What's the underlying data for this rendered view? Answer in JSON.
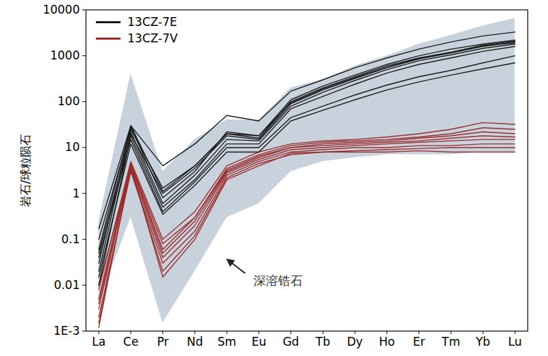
{
  "chart_data": {
    "type": "line",
    "categories": [
      "La",
      "Ce",
      "Pr",
      "Nd",
      "Sm",
      "Eu",
      "Gd",
      "Tb",
      "Dy",
      "Ho",
      "Er",
      "Tm",
      "Yb",
      "Lu"
    ],
    "ylabel": "岩石/球粒陨石",
    "log": "y",
    "ylim": [
      0.001,
      10000
    ],
    "yticks": [
      {
        "value": 0.001,
        "label": "1E-3"
      },
      0.01,
      0.1,
      1,
      10,
      100,
      1000,
      10000
    ],
    "legend": "top-left",
    "band": {
      "name": "深溶锆石",
      "color": "#c8d2dc",
      "lower": [
        0.004,
        0.3,
        0.0015,
        0.02,
        0.3,
        0.6,
        3,
        5,
        6,
        7,
        7,
        7,
        8,
        8
      ],
      "upper": [
        0.25,
        400,
        3,
        15,
        40,
        40,
        200,
        300,
        600,
        1000,
        1800,
        2800,
        4500,
        6500
      ]
    },
    "series": [
      {
        "name": "13CZ-7E",
        "color": "#1a1a1a",
        "values": [
          [
            0.17,
            30,
            4,
            12,
            50,
            38,
            170,
            300,
            550,
            900,
            1400,
            2000,
            2700,
            3300
          ],
          [
            0.1,
            25,
            1.3,
            4,
            20,
            16,
            100,
            200,
            350,
            600,
            900,
            1200,
            1700,
            2100
          ],
          [
            0.05,
            20,
            1.0,
            3.5,
            18,
            15,
            90,
            180,
            320,
            550,
            850,
            1150,
            1600,
            2000
          ],
          [
            0.03,
            28,
            0.8,
            3,
            22,
            18,
            95,
            190,
            330,
            560,
            880,
            1200,
            1650,
            1900
          ],
          [
            0.02,
            22,
            0.6,
            2.5,
            15,
            14,
            80,
            160,
            290,
            500,
            780,
            1050,
            1450,
            1800
          ],
          [
            0.01,
            18,
            0.5,
            2,
            12,
            12,
            70,
            130,
            240,
            420,
            650,
            900,
            1250,
            1600
          ],
          [
            0.04,
            15,
            0.4,
            1.8,
            10,
            10,
            45,
            80,
            140,
            230,
            350,
            480,
            700,
            1000
          ],
          [
            0.015,
            12,
            0.35,
            1.5,
            8,
            8,
            38,
            65,
            110,
            180,
            270,
            380,
            520,
            700
          ],
          [
            0.06,
            30,
            1.1,
            4,
            20,
            18,
            110,
            220,
            380,
            650,
            1000,
            1400,
            1800,
            2200
          ]
        ]
      },
      {
        "name": "13CZ-7V",
        "color": "#9b2a2a",
        "values": [
          [
            0.008,
            5,
            0.1,
            0.4,
            4,
            8,
            12,
            14,
            15,
            17,
            20,
            25,
            35,
            32
          ],
          [
            0.005,
            4.5,
            0.08,
            0.3,
            3.5,
            7,
            11,
            13,
            14,
            15,
            17,
            20,
            27,
            25
          ],
          [
            0.003,
            4,
            0.05,
            0.25,
            3,
            6,
            10,
            12,
            13,
            14,
            16,
            18,
            22,
            20
          ],
          [
            0.01,
            3.5,
            0.04,
            0.2,
            2.8,
            5.5,
            9,
            10,
            11,
            12,
            13,
            14,
            15,
            15
          ],
          [
            0.002,
            3,
            0.03,
            0.15,
            2.5,
            5,
            8,
            9,
            10,
            10,
            11,
            11,
            12,
            12
          ],
          [
            0.0015,
            3.2,
            0.02,
            0.12,
            2.2,
            4.5,
            7,
            8,
            8.5,
            9,
            9.5,
            10,
            10,
            10
          ],
          [
            0.004,
            3.8,
            0.015,
            0.1,
            2,
            4,
            7.5,
            8,
            8,
            8,
            8.5,
            8,
            8,
            8
          ],
          [
            0.0012,
            4.2,
            0.06,
            0.3,
            3.2,
            6.5,
            10,
            11,
            12,
            13,
            14,
            16,
            18,
            17
          ]
        ]
      }
    ]
  }
}
